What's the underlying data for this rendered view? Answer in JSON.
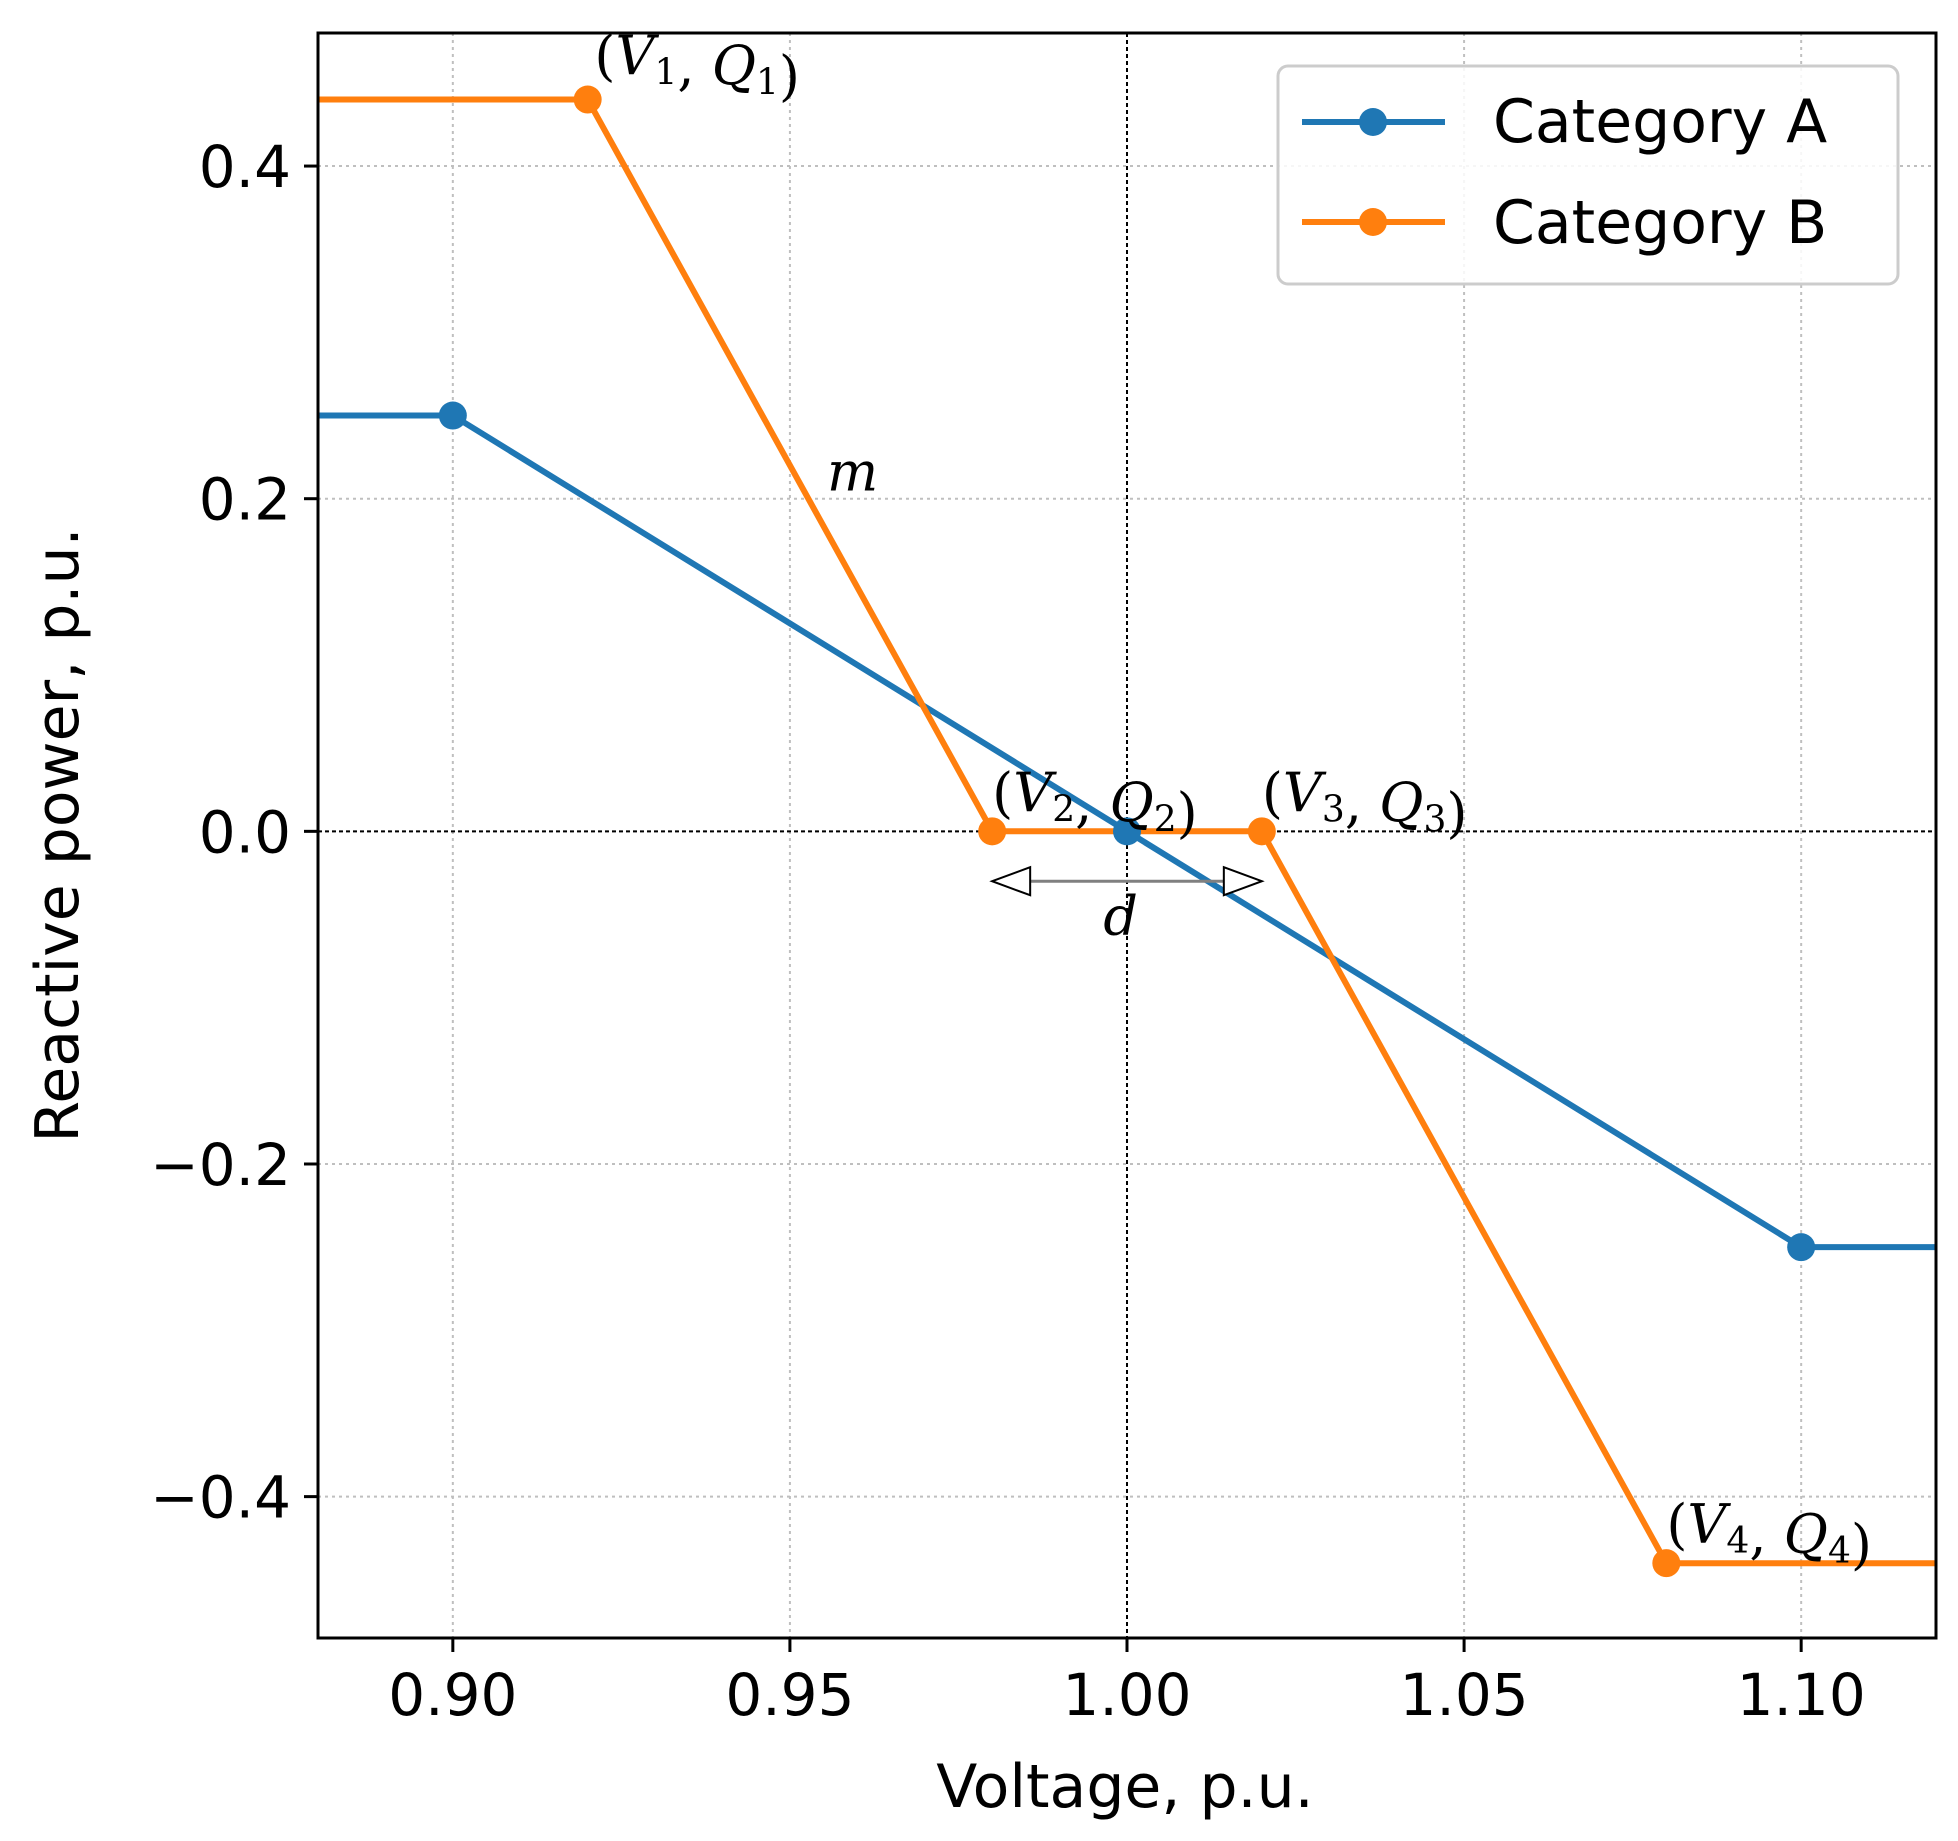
{
  "chart_data": {
    "type": "line",
    "xlabel": "Voltage, p.u.",
    "ylabel": "Reactive power, p.u.",
    "xlim": [
      0.88,
      1.12
    ],
    "ylim": [
      -0.485,
      0.48
    ],
    "xticks": [
      0.9,
      0.95,
      1.0,
      1.05,
      1.1
    ],
    "xtick_labels": [
      "0.90",
      "0.95",
      "1.00",
      "1.05",
      "1.10"
    ],
    "yticks": [
      0.4,
      0.2,
      0.0,
      -0.2,
      -0.4
    ],
    "ytick_labels": [
      "0.4",
      "0.2",
      "0.0",
      "−0.2",
      "−0.4"
    ],
    "grid": true,
    "reference_lines": {
      "vertical_x": 1.0,
      "horizontal_y": 0.0
    },
    "legend_position": "top-right",
    "series": [
      {
        "name": "Category A",
        "color": "#1f77b4",
        "line_x": [
          0.88,
          0.9,
          1.0,
          1.1,
          1.12
        ],
        "line_y": [
          0.25,
          0.25,
          0.0,
          -0.25,
          -0.25
        ],
        "marker_x": [
          0.9,
          1.0,
          1.1
        ],
        "marker_y": [
          0.25,
          0.0,
          -0.25
        ]
      },
      {
        "name": "Category B",
        "color": "#ff7f0e",
        "line_x": [
          0.88,
          0.92,
          0.98,
          1.02,
          1.08,
          1.12
        ],
        "line_y": [
          0.44,
          0.44,
          0.0,
          0.0,
          -0.44,
          -0.44
        ],
        "marker_x": [
          0.92,
          0.98,
          1.02,
          1.08
        ],
        "marker_y": [
          0.44,
          0.0,
          0.0,
          -0.44
        ]
      }
    ],
    "annotations": [
      {
        "id": "p1",
        "label": "(V1, Q1)",
        "V": "V",
        "Q": "Q",
        "sub": "1",
        "x": 0.921,
        "y": 0.455
      },
      {
        "id": "p2",
        "label": "(V2, Q2)",
        "V": "V",
        "Q": "Q",
        "sub": "2",
        "x": 0.98,
        "y": 0.012
      },
      {
        "id": "p3",
        "label": "(V3, Q3)",
        "V": "V",
        "Q": "Q",
        "sub": "3",
        "x": 1.02,
        "y": 0.012
      },
      {
        "id": "p4",
        "label": "(V4, Q4)",
        "V": "V",
        "Q": "Q",
        "sub": "4",
        "x": 1.08,
        "y": -0.428
      },
      {
        "id": "slope",
        "label": "m",
        "x": 0.9555,
        "y": 0.205
      },
      {
        "id": "deadband",
        "label": "d",
        "x": 0.9965,
        "y": -0.062
      }
    ],
    "deadband_arrow": {
      "x_from": 0.98,
      "x_to": 1.02,
      "y": -0.03,
      "color": "#808080"
    }
  }
}
